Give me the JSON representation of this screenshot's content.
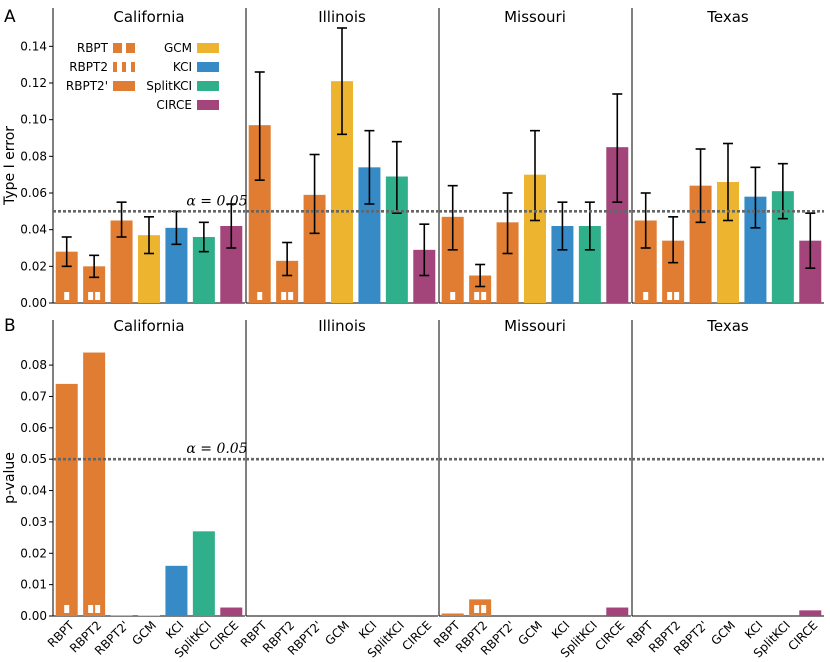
{
  "chart_data": [
    {
      "panel": "A",
      "type": "bar",
      "ylabel": "Type I error",
      "ylim": [
        0,
        0.15
      ],
      "yticks": [
        "0.00",
        "0.02",
        "0.04",
        "0.06",
        "0.08",
        "0.10",
        "0.12",
        "0.14"
      ],
      "reference_line": {
        "value": 0.05,
        "label": "α = 0.05"
      },
      "categories": [
        "RBPT",
        "RBPT2",
        "RBPT2'",
        "GCM",
        "KCI",
        "SplitKCI",
        "CIRCE"
      ],
      "legend": [
        {
          "name": "RBPT",
          "color": "#e07d32",
          "marker": "single"
        },
        {
          "name": "RBPT2",
          "color": "#e07d32",
          "marker": "double"
        },
        {
          "name": "RBPT2'",
          "color": "#e07d32",
          "marker": "none"
        },
        {
          "name": "GCM",
          "color": "#edb430",
          "marker": "none"
        },
        {
          "name": "KCI",
          "color": "#368ac6",
          "marker": "none"
        },
        {
          "name": "SplitKCI",
          "color": "#30b08a",
          "marker": "none"
        },
        {
          "name": "CIRCE",
          "color": "#a3457a",
          "marker": "none"
        }
      ],
      "facets": [
        {
          "title": "California",
          "values": [
            0.028,
            0.02,
            0.045,
            0.037,
            0.041,
            0.036,
            0.042
          ],
          "err_low": [
            0.02,
            0.014,
            0.036,
            0.027,
            0.032,
            0.028,
            0.03
          ],
          "err_high": [
            0.036,
            0.026,
            0.055,
            0.047,
            0.05,
            0.044,
            0.054
          ]
        },
        {
          "title": "Illinois",
          "values": [
            0.097,
            0.023,
            0.059,
            0.121,
            0.074,
            0.069,
            0.029
          ],
          "err_low": [
            0.067,
            0.015,
            0.038,
            0.092,
            0.054,
            0.049,
            0.015
          ],
          "err_high": [
            0.126,
            0.033,
            0.081,
            0.15,
            0.094,
            0.088,
            0.043
          ]
        },
        {
          "title": "Missouri",
          "values": [
            0.047,
            0.015,
            0.044,
            0.07,
            0.042,
            0.042,
            0.085
          ],
          "err_low": [
            0.029,
            0.009,
            0.027,
            0.045,
            0.029,
            0.029,
            0.055
          ],
          "err_high": [
            0.064,
            0.021,
            0.06,
            0.094,
            0.055,
            0.055,
            0.114
          ]
        },
        {
          "title": "Texas",
          "values": [
            0.045,
            0.034,
            0.064,
            0.066,
            0.058,
            0.061,
            0.034
          ],
          "err_low": [
            0.03,
            0.022,
            0.044,
            0.045,
            0.041,
            0.046,
            0.019
          ],
          "err_high": [
            0.06,
            0.047,
            0.084,
            0.087,
            0.074,
            0.076,
            0.049
          ]
        }
      ]
    },
    {
      "panel": "B",
      "type": "bar",
      "ylabel": "p-value",
      "ylim": [
        0,
        0.088
      ],
      "yticks": [
        "0.00",
        "0.01",
        "0.02",
        "0.03",
        "0.04",
        "0.05",
        "0.06",
        "0.07",
        "0.08"
      ],
      "reference_line": {
        "value": 0.05,
        "label": "α = 0.05"
      },
      "categories": [
        "RBPT",
        "RBPT2",
        "RBPT2'",
        "GCM",
        "KCI",
        "SplitKCI",
        "CIRCE"
      ],
      "facets": [
        {
          "title": "California",
          "values": [
            0.074,
            0.084,
            0.0002,
            0.0002,
            0.016,
            0.027,
            0.0027
          ]
        },
        {
          "title": "Illinois",
          "values": [
            0,
            0,
            0,
            0,
            0,
            0,
            0
          ]
        },
        {
          "title": "Missouri",
          "values": [
            0.0008,
            0.0053,
            0,
            0,
            0,
            0,
            0.0027
          ]
        },
        {
          "title": "Texas",
          "values": [
            0,
            0,
            0,
            0,
            0,
            0,
            0.0018
          ]
        }
      ]
    }
  ]
}
